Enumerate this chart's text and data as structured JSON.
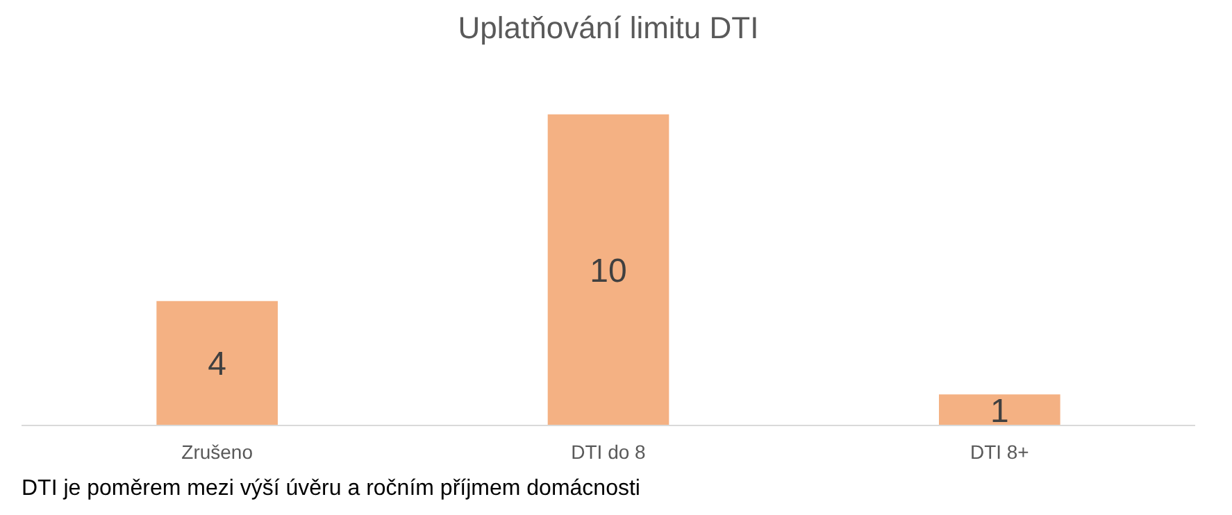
{
  "chart_data": {
    "type": "bar",
    "title": "Uplatňování limitu DTI",
    "categories": [
      "Zrušeno",
      "DTI do 8",
      "DTI 8+"
    ],
    "values": [
      4,
      10,
      1
    ],
    "color": "#f4b183",
    "data_labels": true,
    "annotations": [
      "DTI je poměrem mezi výší úvěru a ročním příjmem domácnosti"
    ]
  }
}
